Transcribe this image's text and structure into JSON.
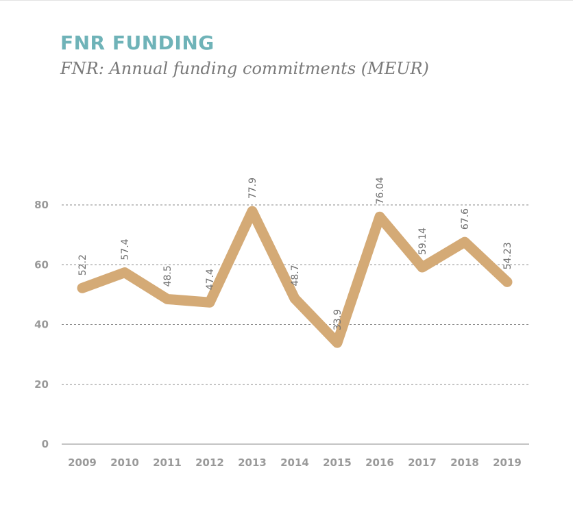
{
  "header": {
    "title": "FNR FUNDING",
    "subtitle": "FNR: Annual funding commitments (MEUR)"
  },
  "colors": {
    "title": "#6fb3b8",
    "line": "#d4aa76",
    "grid": "#8a8a8a",
    "axis": "#9a9a9a"
  },
  "chart_data": {
    "type": "line",
    "title": "FNR: Annual funding commitments (MEUR)",
    "x": [
      "2009",
      "2010",
      "2011",
      "2012",
      "2013",
      "2014",
      "2015",
      "2016",
      "2017",
      "2018",
      "2019"
    ],
    "series": [
      {
        "values": [
          52.2,
          57.4,
          48.5,
          47.4,
          77.9,
          48.7,
          33.9,
          76.04,
          59.14,
          67.6,
          54.23
        ],
        "labels": [
          "52.2",
          "57.4",
          "48.5",
          "47.4",
          "77.9",
          "48.7",
          "33.9",
          "76.04",
          "59.14",
          "67.6",
          "54.23"
        ]
      }
    ],
    "ylim": [
      0,
      80
    ],
    "yticks": [
      0,
      20,
      40,
      60,
      80
    ],
    "grid": "horizontal dashed",
    "legend": "none"
  }
}
